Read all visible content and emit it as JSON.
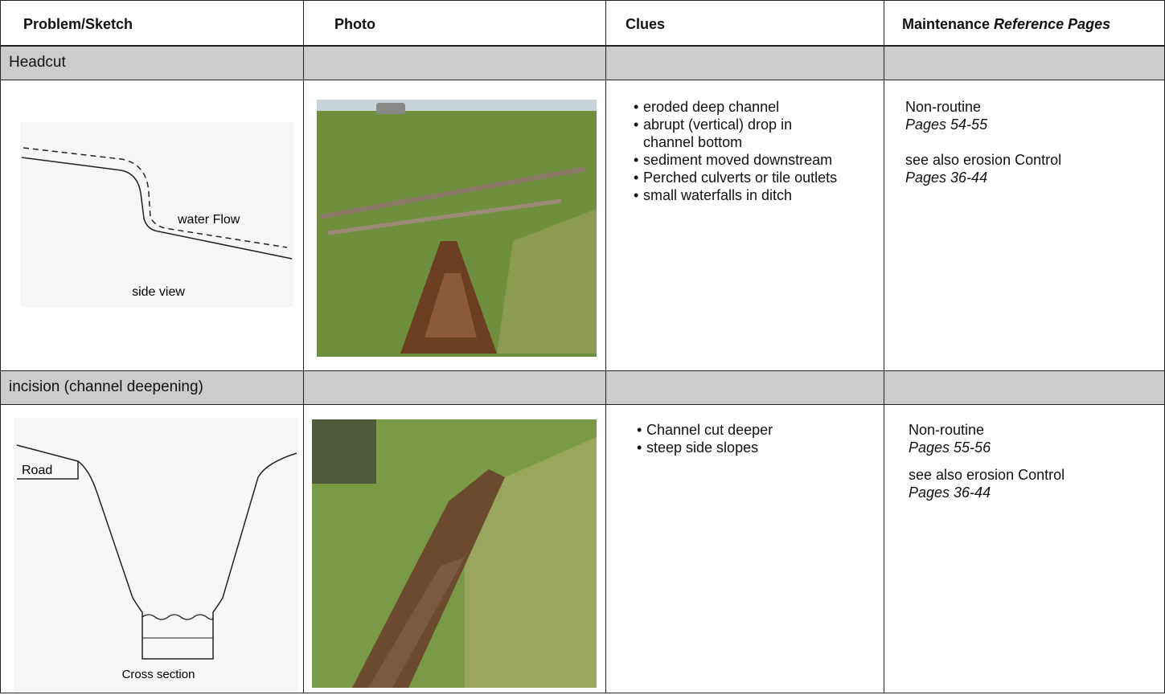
{
  "table": {
    "header": {
      "problem": "Problem/Sketch",
      "photo": "Photo",
      "clues": "Clues",
      "maintenance": "Maintenance",
      "reference": "Reference Pages"
    },
    "sections": [
      {
        "title": "Headcut",
        "sketch": {
          "flow_label": "water Flow",
          "view_label": "side view"
        },
        "clues": [
          "eroded deep channel",
          "abrupt (vertical) drop in channel bottom",
          "sediment moved downstream",
          "Perched culverts or tile outlets",
          "small waterfalls in ditch"
        ],
        "maintenance": {
          "type": "Non-routine",
          "pages": "Pages 54-55",
          "see_also": "see also erosion Control",
          "see_also_pages": "Pages 36-44"
        }
      },
      {
        "title": "incision (channel deepening)",
        "sketch": {
          "road_label": "Road",
          "view_label": "Cross section"
        },
        "clues": [
          "Channel cut deeper",
          "steep side slopes"
        ],
        "maintenance": {
          "type": "Non-routine",
          "pages": "Pages 55-56",
          "see_also": "see also erosion Control",
          "see_also_pages": "Pages 36-44"
        }
      }
    ]
  }
}
